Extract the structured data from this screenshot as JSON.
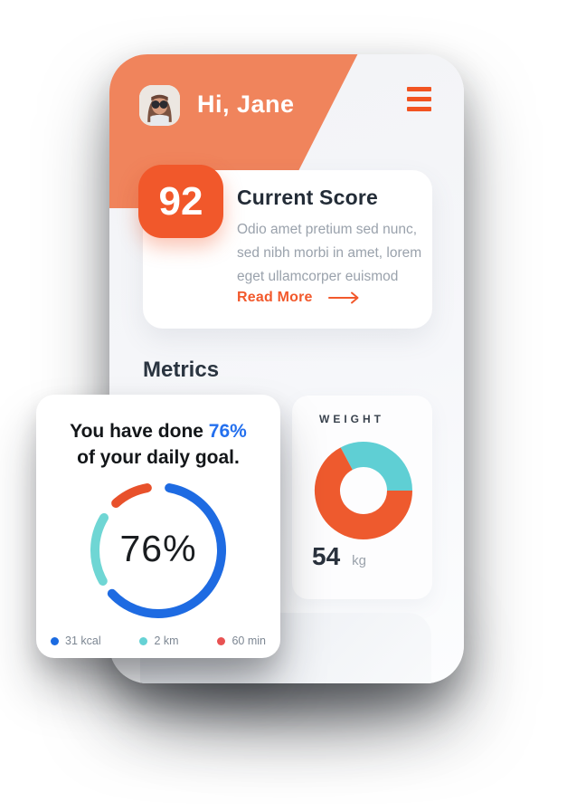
{
  "page": {
    "background": "#ffffff"
  },
  "header": {
    "greeting": "Hi, Jane",
    "bg_color": "#F0845C",
    "accent_color": "#F25422",
    "menu_icon": "hamburger-icon"
  },
  "score_card": {
    "score": "92",
    "badge_color": "#F1582B",
    "title": "Current Score",
    "body": "Odio amet pretium sed nunc, sed nibh morbi in amet, lorem eget ullamcorper euismod",
    "read_more_label": "Read More",
    "link_color": "#F2592C"
  },
  "metrics": {
    "heading": "Metrics"
  },
  "goal_card": {
    "title_prefix": "You have done ",
    "title_highlight": "76%",
    "highlight_color": "#2470EE",
    "title_line2": "of your daily goal.",
    "center_label": "76%",
    "legend": [
      {
        "label": "31 kcal",
        "dot": "#1B6BE1"
      },
      {
        "label": "2 km",
        "dot": "#66D2D5"
      },
      {
        "label": "60 min",
        "dot": "#E85252"
      }
    ]
  },
  "weight_card": {
    "label": "WEIGHT",
    "value": "54",
    "unit": "kg"
  },
  "chart_data": [
    {
      "type": "donut",
      "subtype": "progress-ring",
      "title": "Daily goal progress",
      "value_pct": 76,
      "center_label": "76%",
      "legend_position": "bottom",
      "segments": [
        {
          "name": "calories",
          "label": "31 kcal",
          "color": "#1E6BE2",
          "start_deg": 10,
          "end_deg": 227
        },
        {
          "name": "distance",
          "label": "2 km",
          "color": "#6FD6D4",
          "start_deg": 241,
          "end_deg": 301
        },
        {
          "name": "duration",
          "label": "60 min",
          "color": "#E8512B",
          "start_deg": 318,
          "end_deg": 350
        }
      ]
    },
    {
      "type": "pie",
      "subtype": "donut",
      "title": "WEIGHT",
      "value_label": "54 kg",
      "segments": [
        {
          "name": "teal-share",
          "color": "#5FCFD4",
          "start_deg": 332,
          "end_deg": 450,
          "pct": 33
        },
        {
          "name": "orange-share",
          "color": "#EE5A2E",
          "start_deg": 90,
          "end_deg": 332,
          "pct": 67
        }
      ]
    }
  ]
}
